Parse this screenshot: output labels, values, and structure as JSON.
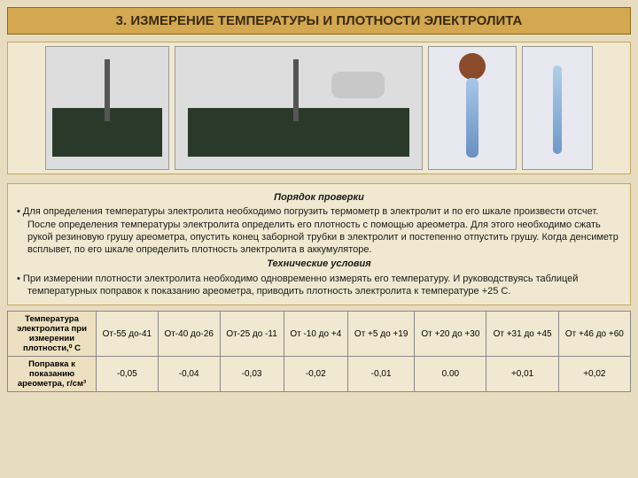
{
  "title": "3. ИЗМЕРЕНИЕ ТЕМПЕРАТУРЫ И ПЛОТНОСТИ ЭЛЕКТРОЛИТА",
  "section1_heading": "Порядок проверки",
  "bullet1": "Для определения температуры электролита необходимо погрузить термометр в электролит и по его шкале произвести отсчет. После определения температуры электролита определить его плотность с помощью ареометра. Для этого необходимо сжать рукой резиновую грушу ареометра, опустить конец заборной трубки в электролит и постепенно отпустить грушу. Когда денсиметр всплывет, по его шкале определить плотность электролита в аккумуляторе.",
  "section2_heading": "Технические условия",
  "bullet2": "При измерении плотности электролита необходимо одновременно измерять его температуру. И руководствуясь таблицей температурных поправок к показанию ареометра, приводить плотность электролита к температуре +25 С.",
  "table": {
    "row1_label": "Температура электролита при измерении плотности,⁰ С",
    "row2_label": "Поправка к показанию ареометра, г/см³",
    "columns": [
      {
        "range": "От-55 до-41",
        "correction": "-0,05"
      },
      {
        "range": "От-40 до-26",
        "correction": "-0,04"
      },
      {
        "range": "От-25 до -11",
        "correction": "-0,03"
      },
      {
        "range": "От -10 до +4",
        "correction": "-0,02"
      },
      {
        "range": "От +5 до +19",
        "correction": "-0,01"
      },
      {
        "range": "От +20 до +30",
        "correction": "0.00"
      },
      {
        "range": "От +31 до +45",
        "correction": "+0,01"
      },
      {
        "range": "От +46 до +60",
        "correction": "+0,02"
      }
    ]
  },
  "colors": {
    "page_bg": "#e8dcc0",
    "title_bg": "#d4a850",
    "title_border": "#8b6914",
    "panel_bg": "#f0e8d0",
    "panel_border": "#c0a860",
    "table_border": "#888888"
  }
}
